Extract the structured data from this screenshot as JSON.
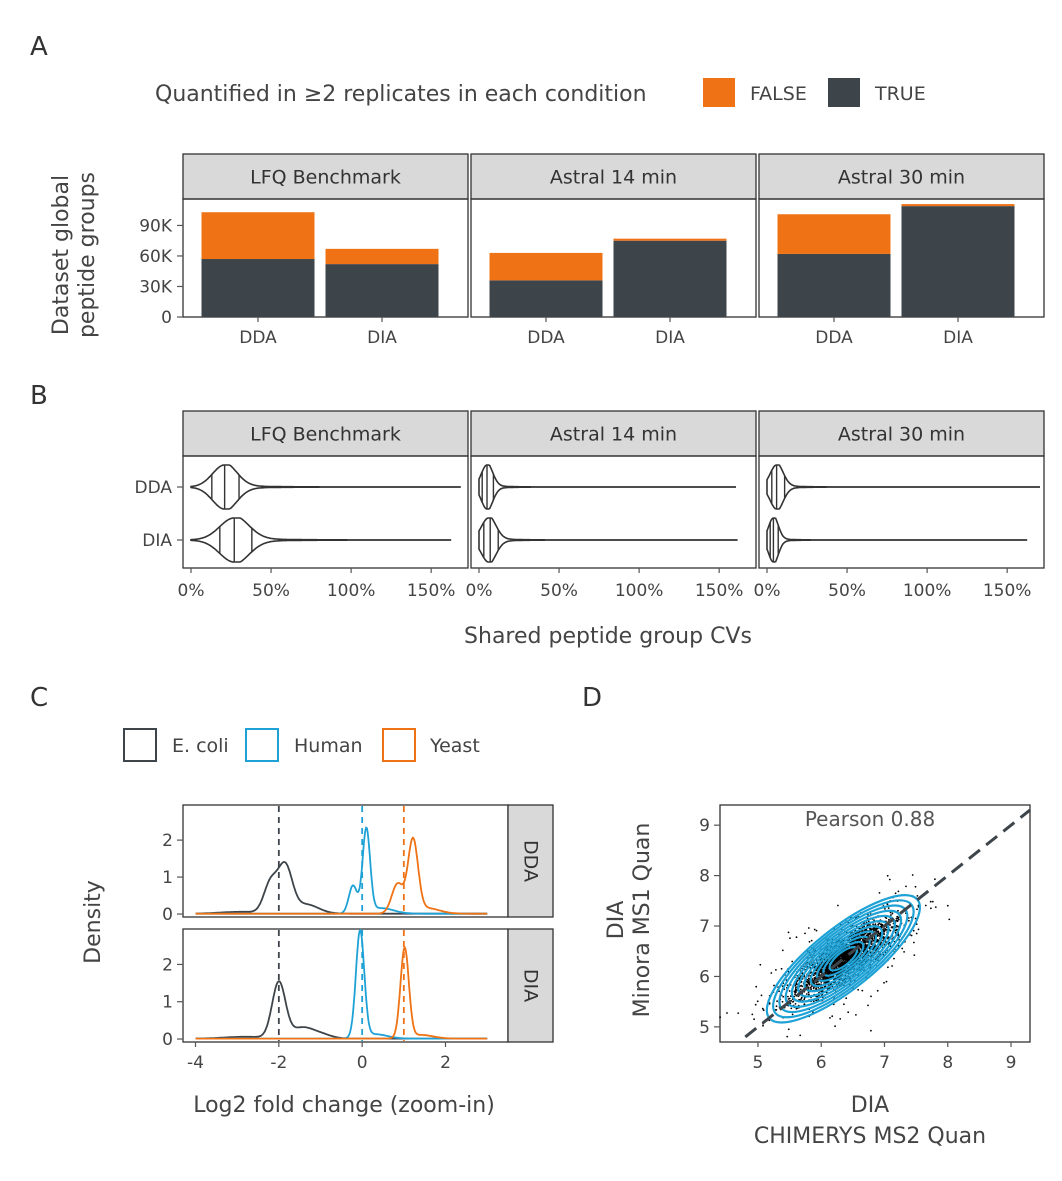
{
  "colors": {
    "false": "#ef7215",
    "true": "#3d454b",
    "ecoli": "#3d454b",
    "human": "#1ea2d6",
    "yeast": "#ef7215",
    "strip_bg": "#d9d9d9",
    "panel_border": "#333333",
    "scatter_points": "#000000"
  },
  "panel_letters": [
    "A",
    "B",
    "C",
    "D"
  ],
  "chart_data": [
    {
      "panel": "A",
      "type": "bar",
      "stacked": true,
      "legend": {
        "title": "Quantified in ≥2 replicates in each condition",
        "entries": [
          "FALSE",
          "TRUE"
        ],
        "position": "top"
      },
      "ylabel_lines": [
        "Dataset global",
        "peptide groups"
      ],
      "yticks": [
        "0",
        "30K",
        "60K",
        "90K"
      ],
      "ylim": [
        0,
        116000
      ],
      "facets": [
        {
          "name": "LFQ Benchmark",
          "categories": [
            "DDA",
            "DIA"
          ],
          "series": [
            {
              "name": "TRUE",
              "values": [
                57000,
                52000
              ]
            },
            {
              "name": "FALSE",
              "values": [
                46000,
                15000
              ]
            }
          ]
        },
        {
          "name": "Astral 14 min",
          "categories": [
            "DDA",
            "DIA"
          ],
          "series": [
            {
              "name": "TRUE",
              "values": [
                36000,
                75000
              ]
            },
            {
              "name": "FALSE",
              "values": [
                27000,
                2000
              ]
            }
          ]
        },
        {
          "name": "Astral 30 min",
          "categories": [
            "DDA",
            "DIA"
          ],
          "series": [
            {
              "name": "TRUE",
              "values": [
                62000,
                109000
              ]
            },
            {
              "name": "FALSE",
              "values": [
                39000,
                2000
              ]
            }
          ]
        }
      ]
    },
    {
      "panel": "B",
      "type": "violin",
      "xlabel": "Shared peptide group CVs",
      "xticks": [
        "0%",
        "50%",
        "100%",
        "150%"
      ],
      "xlim": [
        -0.05,
        1.73
      ],
      "categories": [
        "DDA",
        "DIA"
      ],
      "facets": [
        {
          "name": "LFQ Benchmark",
          "violins": [
            {
              "group": "DDA",
              "mode": 0.21,
              "spread": 0.075,
              "max": 1.68,
              "quantiles": [
                0.13,
                0.21,
                0.3
              ]
            },
            {
              "group": "DIA",
              "mode": 0.27,
              "spread": 0.09,
              "max": 1.62,
              "quantiles": [
                0.18,
                0.27,
                0.38
              ]
            }
          ]
        },
        {
          "name": "Astral 14 min",
          "violins": [
            {
              "group": "DDA",
              "mode": 0.05,
              "spread": 0.035,
              "max": 1.6,
              "quantiles": [
                0.02,
                0.05,
                0.09
              ]
            },
            {
              "group": "DIA",
              "mode": 0.06,
              "spread": 0.045,
              "max": 1.61,
              "quantiles": [
                0.03,
                0.07,
                0.12
              ]
            }
          ]
        },
        {
          "name": "Astral 30 min",
          "violins": [
            {
              "group": "DDA",
              "mode": 0.06,
              "spread": 0.04,
              "max": 1.7,
              "quantiles": [
                0.03,
                0.06,
                0.11
              ]
            },
            {
              "group": "DIA",
              "mode": 0.04,
              "spread": 0.03,
              "max": 1.62,
              "quantiles": [
                0.02,
                0.04,
                0.07
              ]
            }
          ]
        }
      ]
    },
    {
      "panel": "C",
      "type": "line",
      "legend": {
        "entries": [
          "E. coli",
          "Human",
          "Yeast"
        ],
        "position": "top-left"
      },
      "xlabel": "Log2 fold change (zoom-in)",
      "ylabel": "Density",
      "xticks": [
        -4,
        -2,
        0,
        2
      ],
      "xlim": [
        -4.3,
        3.5
      ],
      "reference_lines": [
        {
          "x": -2,
          "series": "E. coli"
        },
        {
          "x": 0,
          "series": "Human"
        },
        {
          "x": 1,
          "series": "Yeast"
        }
      ],
      "facets": [
        {
          "name": "DDA",
          "yticks": [
            0,
            1,
            2
          ],
          "ylim": [
            -0.08,
            2.95
          ],
          "series": [
            {
              "name": "E. coli",
              "peaks": [
                {
                  "x": -2.2,
                  "h": 0.8,
                  "w": 0.16
                },
                {
                  "x": -1.85,
                  "h": 1.25,
                  "w": 0.17
                },
                {
                  "x": -1.35,
                  "h": 0.25,
                  "w": 0.3
                },
                {
                  "x": -2.9,
                  "h": 0.05,
                  "w": 0.5
                }
              ]
            },
            {
              "name": "Human",
              "peaks": [
                {
                  "x": -0.22,
                  "h": 0.75,
                  "w": 0.1
                },
                {
                  "x": 0.1,
                  "h": 2.25,
                  "w": 0.09
                },
                {
                  "x": 0.45,
                  "h": 0.15,
                  "w": 0.3
                }
              ]
            },
            {
              "name": "Yeast",
              "peaks": [
                {
                  "x": 0.85,
                  "h": 0.8,
                  "w": 0.14
                },
                {
                  "x": 1.22,
                  "h": 1.95,
                  "w": 0.12
                },
                {
                  "x": 1.55,
                  "h": 0.15,
                  "w": 0.3
                }
              ]
            }
          ]
        },
        {
          "name": "DIA",
          "yticks": [
            0,
            1,
            2
          ],
          "ylim": [
            -0.08,
            2.95
          ],
          "series": [
            {
              "name": "E. coli",
              "peaks": [
                {
                  "x": -2.0,
                  "h": 1.5,
                  "w": 0.16
                },
                {
                  "x": -1.45,
                  "h": 0.28,
                  "w": 0.25
                },
                {
                  "x": -1.0,
                  "h": 0.12,
                  "w": 0.25
                },
                {
                  "x": -2.8,
                  "h": 0.05,
                  "w": 0.5
                }
              ]
            },
            {
              "name": "Human",
              "peaks": [
                {
                  "x": -0.05,
                  "h": 2.85,
                  "w": 0.1
                },
                {
                  "x": 0.3,
                  "h": 0.12,
                  "w": 0.3
                }
              ]
            },
            {
              "name": "Yeast",
              "peaks": [
                {
                  "x": 1.02,
                  "h": 2.4,
                  "w": 0.1
                },
                {
                  "x": 1.4,
                  "h": 0.1,
                  "w": 0.3
                }
              ]
            }
          ]
        }
      ]
    },
    {
      "panel": "D",
      "type": "scatter",
      "xlabel_lines": [
        "DIA",
        "CHIMERYS MS2 Quan"
      ],
      "ylabel_lines": [
        "DIA",
        "Minora MS1 Quan"
      ],
      "annotation": "Pearson 0.88",
      "xticks": [
        5,
        6,
        7,
        8,
        9
      ],
      "yticks": [
        5,
        6,
        7,
        8,
        9
      ],
      "xlim": [
        4.4,
        9.3
      ],
      "ylim": [
        4.7,
        9.4
      ],
      "identity_line": true,
      "density_contours": true,
      "center": [
        6.35,
        6.35
      ],
      "correlation": 0.88
    }
  ]
}
